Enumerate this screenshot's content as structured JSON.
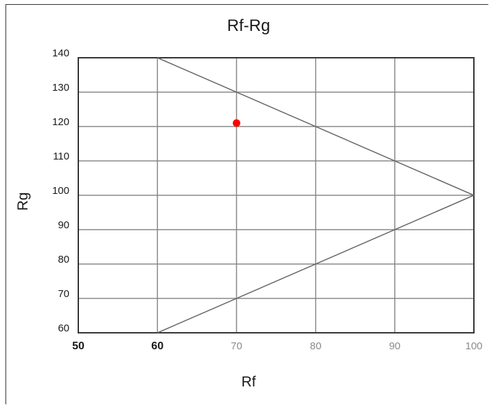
{
  "chart_data": {
    "type": "scatter",
    "title": "Rf-Rg",
    "xlabel": "Rf",
    "ylabel": "Rg",
    "xlim": [
      50,
      100
    ],
    "ylim": [
      60,
      140
    ],
    "x_ticks": [
      50,
      60,
      70,
      80,
      90,
      100
    ],
    "y_ticks": [
      60,
      70,
      80,
      90,
      100,
      110,
      120,
      130,
      140
    ],
    "grid": true,
    "gamut_boundary": [
      [
        60,
        140
      ],
      [
        100,
        100
      ],
      [
        60,
        60
      ]
    ],
    "points": [
      {
        "x": 70,
        "y": 121
      }
    ],
    "colors": {
      "point": "#ff0000",
      "grid": "#888888",
      "frame": "#333333",
      "boundary": "#666666"
    }
  }
}
